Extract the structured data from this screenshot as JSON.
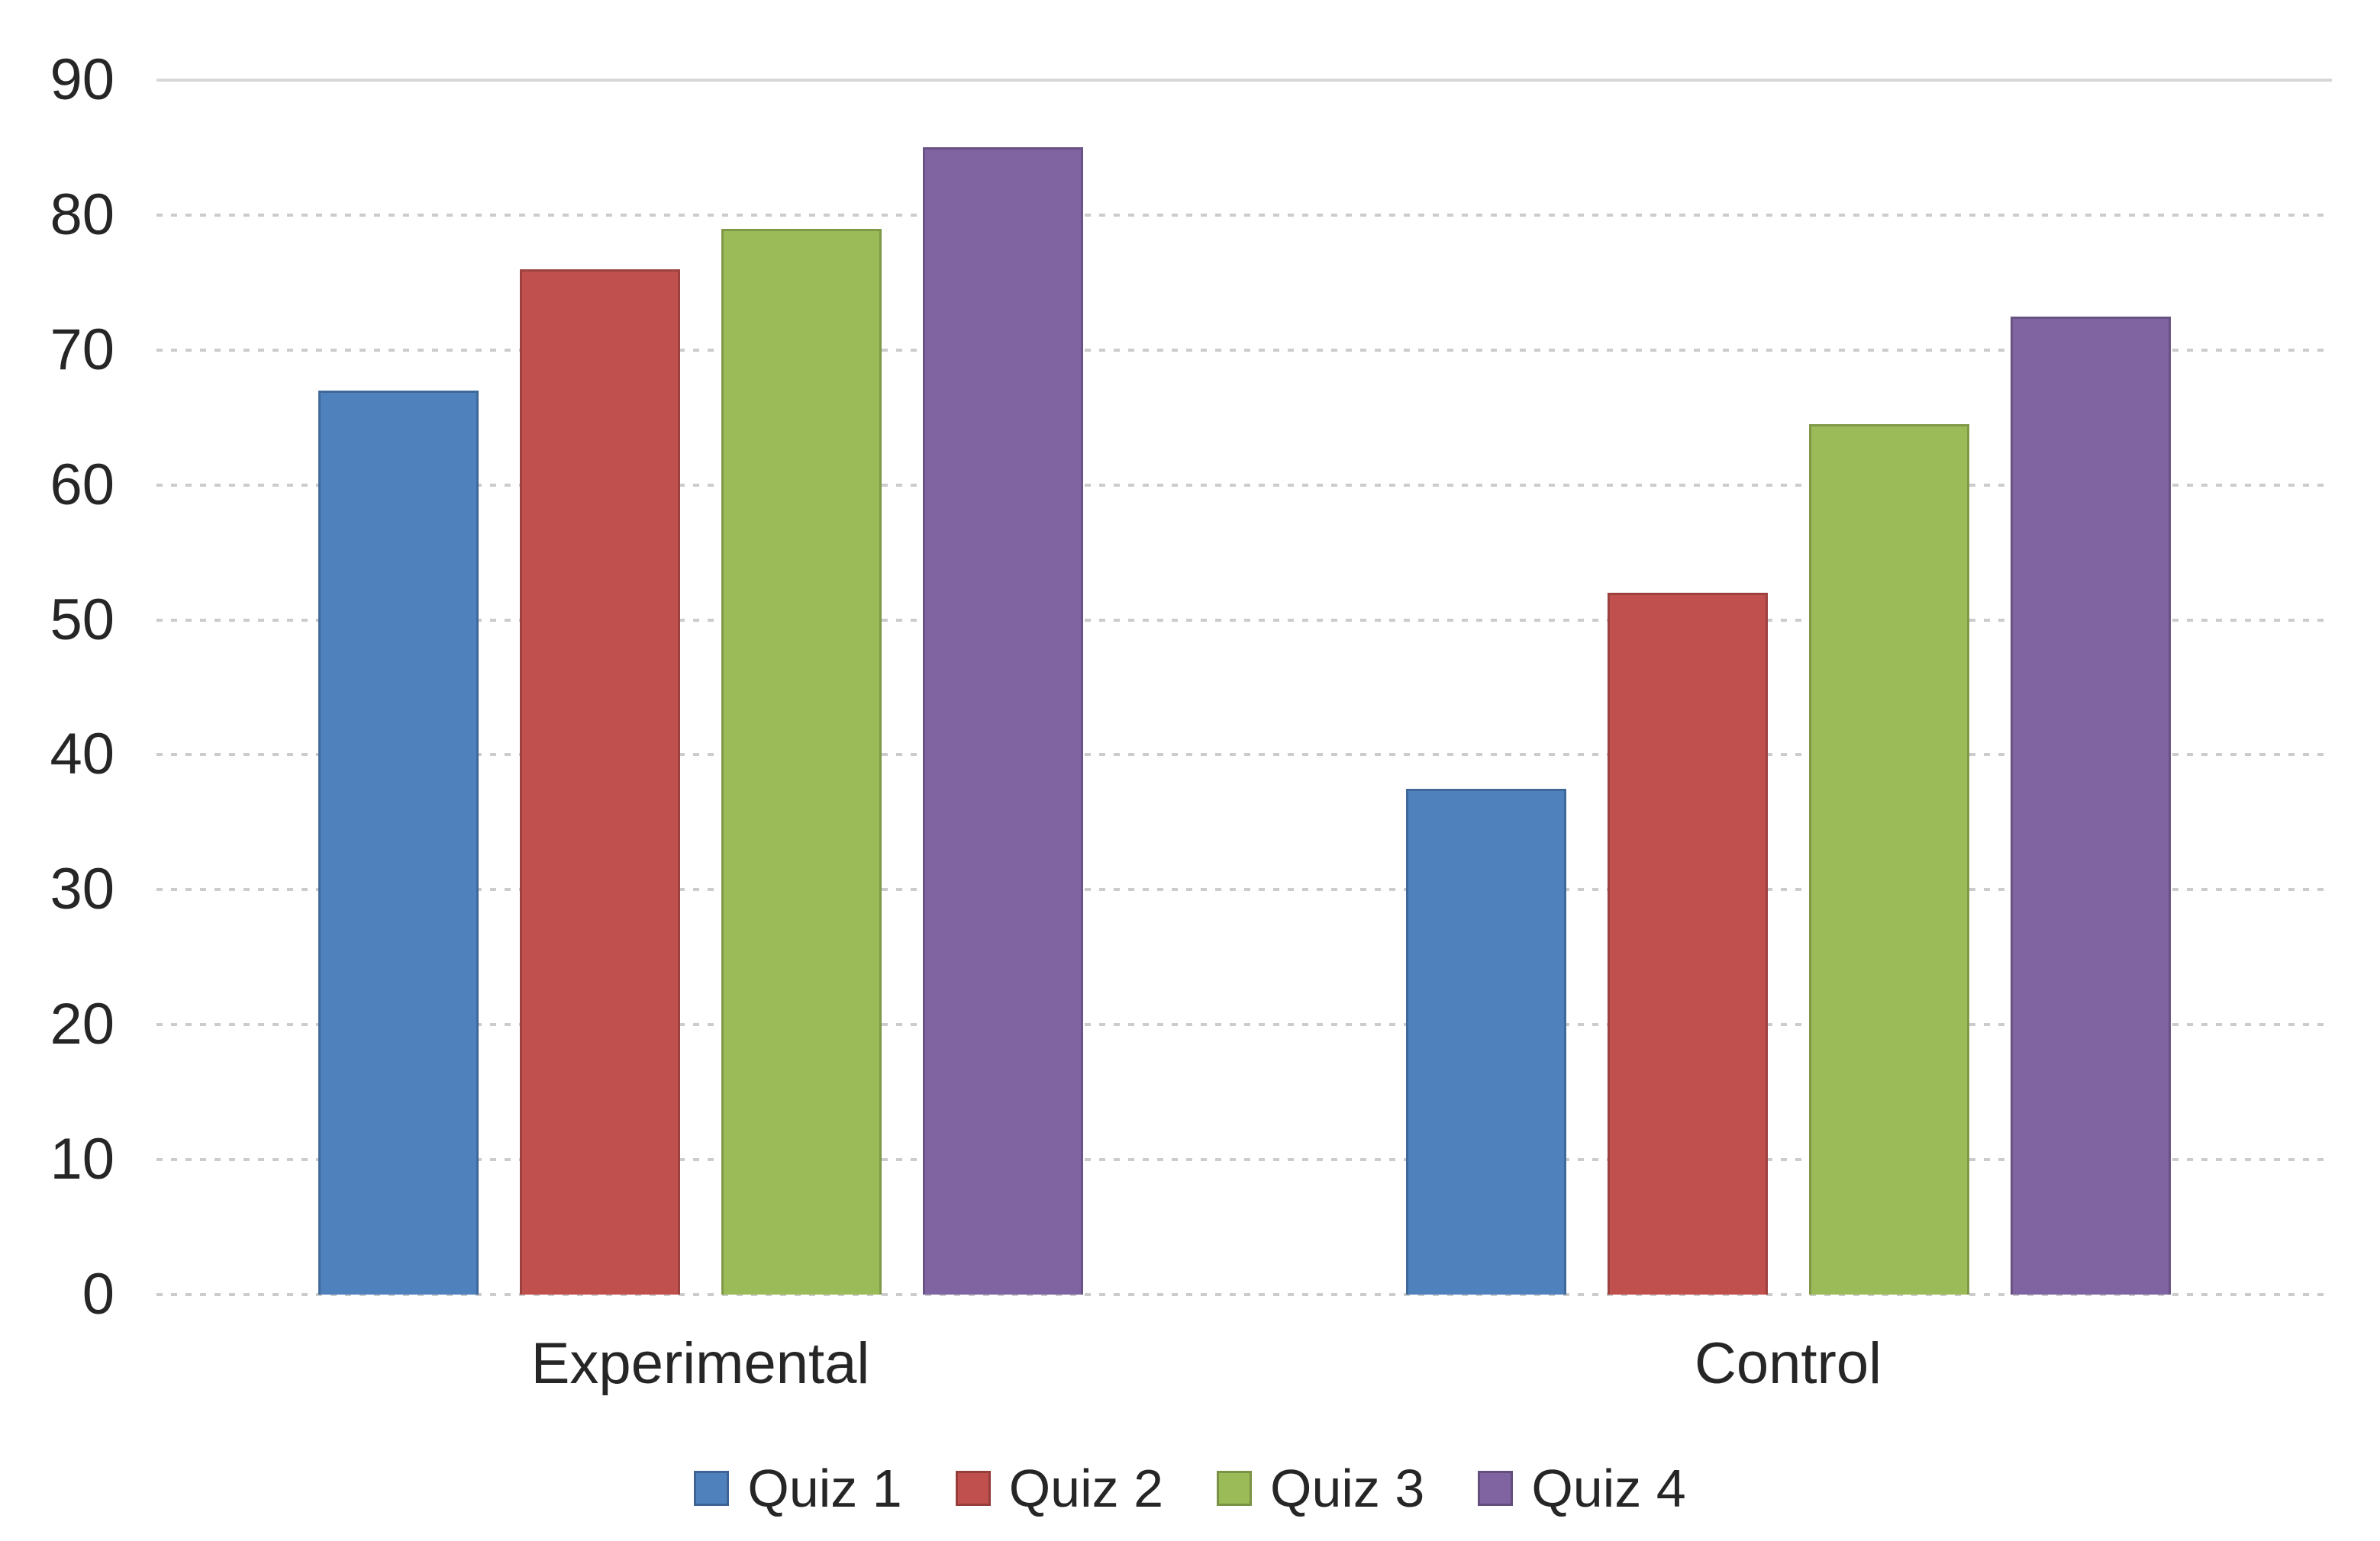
{
  "chart_data": {
    "type": "bar",
    "title": "",
    "categories": [
      "Experimental",
      "Control"
    ],
    "series": [
      {
        "name": "Quiz 1",
        "color": "#4F81BD",
        "values": [
          67,
          37.5
        ]
      },
      {
        "name": "Quiz 2",
        "color": "#C0504D",
        "values": [
          76,
          52
        ]
      },
      {
        "name": "Quiz 3",
        "color": "#9BBB59",
        "values": [
          79,
          64.5
        ]
      },
      {
        "name": "Quiz 4",
        "color": "#8064A2",
        "values": [
          85,
          72.5
        ]
      }
    ],
    "xlabel": "",
    "ylabel": "",
    "ylim": [
      0,
      90
    ],
    "yticks": [
      0,
      10,
      20,
      30,
      40,
      50,
      60,
      70,
      80,
      90
    ],
    "grid": "horizontal",
    "gridline_styles": {
      "90": "solid",
      "others": "dotted"
    },
    "legend_position": "bottom-center"
  },
  "colors": {
    "background": "#ffffff",
    "gridline_solid": "#d7d7d7",
    "gridline_dotted": "#cccccc",
    "text": "#262626"
  }
}
